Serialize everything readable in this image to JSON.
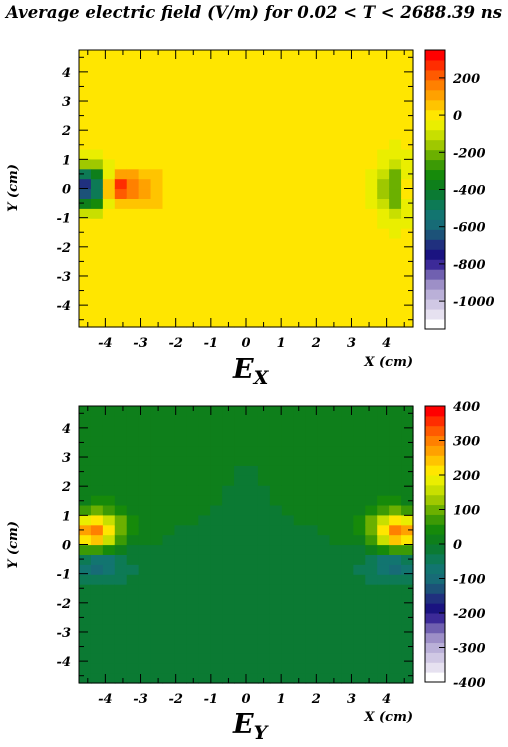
{
  "title": "Average electric field (V/m) for 0.02 < T < 2688.39 ns",
  "chart_data": [
    {
      "type": "heatmap",
      "id": "ex",
      "title": "E",
      "title_sub": "X",
      "xlabel": "X (cm)",
      "ylabel": "Y (cm)",
      "xlim": [
        -4.75,
        4.75
      ],
      "ylim": [
        -4.75,
        4.75
      ],
      "x_ticks": [
        "-4",
        "-3",
        "-2",
        "-1",
        "0",
        "1",
        "2",
        "3",
        "4"
      ],
      "y_ticks": [
        "4",
        "3",
        "2",
        "1",
        "0",
        "-1",
        "-2",
        "-3",
        "-4"
      ],
      "z_range": [
        -1150,
        350
      ],
      "z_ticks": [
        "200",
        "0",
        "-200",
        "-400",
        "-600",
        "-800",
        "-1000"
      ],
      "grid": false,
      "background_value": 0,
      "features": [
        {
          "x": -4.45,
          "y": 0.05,
          "amp": -900,
          "sx": 0.35,
          "sy": 0.45
        },
        {
          "x": -3.9,
          "y": 0.05,
          "amp": 300,
          "sx": 0.45,
          "sy": 0.3
        },
        {
          "x": -3.2,
          "y": 0.0,
          "amp": 100,
          "sx": 0.6,
          "sy": 0.5
        },
        {
          "x": 4.3,
          "y": 0.0,
          "amp": -300,
          "sx": 0.35,
          "sy": 0.7
        },
        {
          "x": 4.55,
          "y": 0.0,
          "amp": 200,
          "sx": 0.2,
          "sy": 0.5
        }
      ]
    },
    {
      "type": "heatmap",
      "id": "ey",
      "title": "E",
      "title_sub": "Y",
      "xlabel": "X (cm)",
      "ylabel": "Y (cm)",
      "xlim": [
        -4.75,
        4.75
      ],
      "ylim": [
        -4.75,
        4.75
      ],
      "x_ticks": [
        "-4",
        "-3",
        "-2",
        "-1",
        "0",
        "1",
        "2",
        "3",
        "4"
      ],
      "y_ticks": [
        "4",
        "3",
        "2",
        "1",
        "0",
        "-1",
        "-2",
        "-3",
        "-4"
      ],
      "z_range": [
        -400,
        400
      ],
      "z_ticks": [
        "400",
        "300",
        "200",
        "100",
        "0",
        "-100",
        "-200",
        "-300",
        "-400"
      ],
      "grid": false,
      "background_value": 0,
      "features": [
        {
          "x": -4.35,
          "y": 0.3,
          "amp": 300,
          "sx": 0.45,
          "sy": 0.5
        },
        {
          "x": -4.0,
          "y": 0.6,
          "amp": 80,
          "sx": 0.6,
          "sy": 0.6
        },
        {
          "x": -4.3,
          "y": -0.35,
          "amp": -150,
          "sx": 0.45,
          "sy": 0.45
        },
        {
          "x": -3.8,
          "y": -0.8,
          "amp": -40,
          "sx": 0.7,
          "sy": 0.7
        },
        {
          "x": 4.35,
          "y": 0.3,
          "amp": 300,
          "sx": 0.45,
          "sy": 0.5
        },
        {
          "x": 4.0,
          "y": 0.6,
          "amp": 80,
          "sx": 0.6,
          "sy": 0.6
        },
        {
          "x": 4.3,
          "y": -0.35,
          "amp": -150,
          "sx": 0.45,
          "sy": 0.45
        },
        {
          "x": 3.8,
          "y": -0.8,
          "amp": -40,
          "sx": 0.7,
          "sy": 0.7
        }
      ]
    }
  ]
}
